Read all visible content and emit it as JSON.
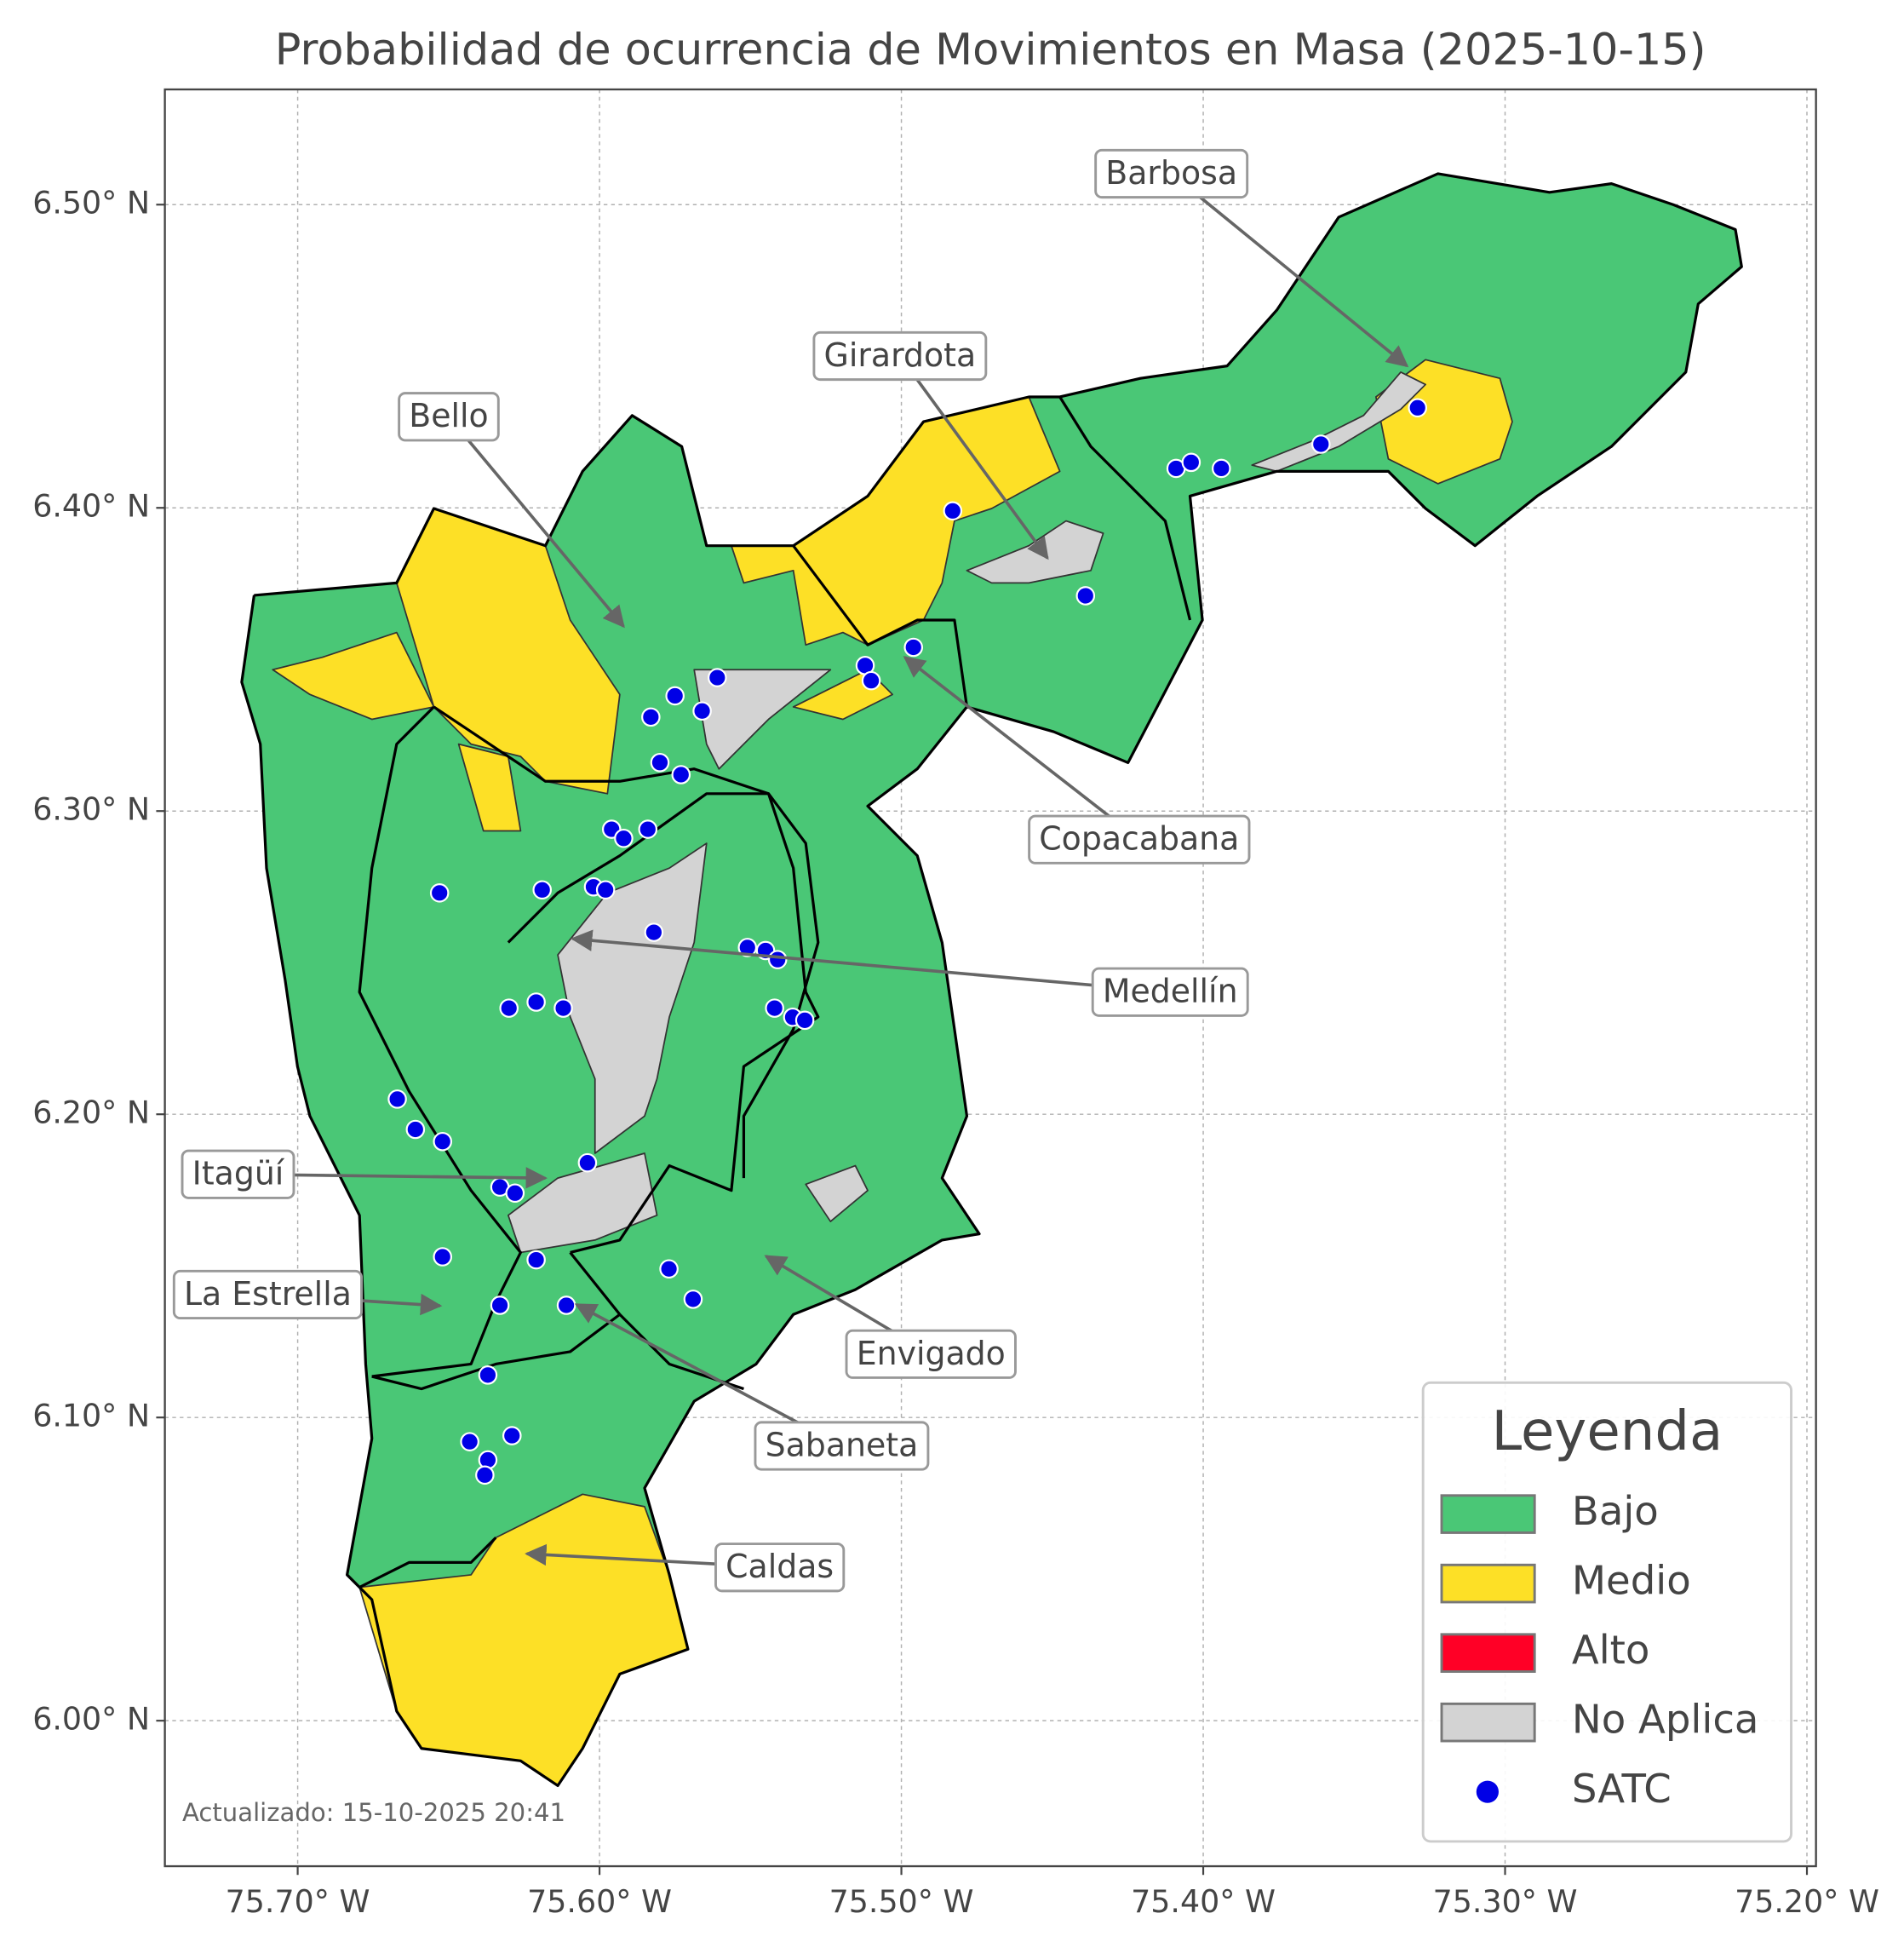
{
  "map": {
    "title": "Probabilidad de ocurrencia de Movimientos en Masa (2025-10-15)",
    "footer": "Actualizado: 15-10-2025 20:41",
    "xlim": [
      -75.744,
      -75.197
    ],
    "ylim": [
      5.952,
      6.538
    ],
    "xticks": [
      {
        "value": -75.7,
        "label": "75.70° W"
      },
      {
        "value": -75.6,
        "label": "75.60° W"
      },
      {
        "value": -75.5,
        "label": "75.50° W"
      },
      {
        "value": -75.4,
        "label": "75.40° W"
      },
      {
        "value": -75.3,
        "label": "75.30° W"
      },
      {
        "value": -75.2,
        "label": "75.20° W"
      }
    ],
    "yticks": [
      {
        "value": 6.0,
        "label": "6.00° N"
      },
      {
        "value": 6.1,
        "label": "6.10° N"
      },
      {
        "value": 6.2,
        "label": "6.20° N"
      },
      {
        "value": 6.3,
        "label": "6.30° N"
      },
      {
        "value": 6.4,
        "label": "6.40° N"
      },
      {
        "value": 6.5,
        "label": "6.50° N"
      }
    ],
    "grid": true,
    "legend": {
      "title": "Leyenda",
      "position": "lower right",
      "entries": [
        {
          "name": "Bajo",
          "color": "#4ac776",
          "marker": "patch"
        },
        {
          "name": "Medio",
          "color": "#fde026",
          "marker": "patch"
        },
        {
          "name": "Alto",
          "color": "#ff0026",
          "marker": "patch"
        },
        {
          "name": "No Aplica",
          "color": "#d3d3d3",
          "marker": "patch"
        },
        {
          "name": "SATC",
          "color": "#0000e6",
          "marker": "circle"
        }
      ]
    },
    "annotations": [
      "Barbosa",
      "Girardota",
      "Bello",
      "Copacabana",
      "Medellín",
      "Itagüí",
      "La Estrella",
      "Envigado",
      "Sabaneta",
      "Caldas"
    ],
    "satc": [
      {
        "lon": -75.483,
        "lat": 6.399
      },
      {
        "lon": -75.409,
        "lat": 6.413
      },
      {
        "lon": -75.404,
        "lat": 6.415
      },
      {
        "lon": -75.394,
        "lat": 6.413
      },
      {
        "lon": -75.361,
        "lat": 6.421
      },
      {
        "lon": -75.329,
        "lat": 6.433
      },
      {
        "lon": -75.439,
        "lat": 6.371
      },
      {
        "lon": -75.496,
        "lat": 6.354
      },
      {
        "lon": -75.512,
        "lat": 6.348
      },
      {
        "lon": -75.51,
        "lat": 6.343
      },
      {
        "lon": -75.561,
        "lat": 6.344
      },
      {
        "lon": -75.575,
        "lat": 6.338
      },
      {
        "lon": -75.566,
        "lat": 6.333
      },
      {
        "lon": -75.583,
        "lat": 6.331
      },
      {
        "lon": -75.58,
        "lat": 6.316
      },
      {
        "lon": -75.573,
        "lat": 6.312
      },
      {
        "lon": -75.596,
        "lat": 6.294
      },
      {
        "lon": -75.592,
        "lat": 6.291
      },
      {
        "lon": -75.584,
        "lat": 6.294
      },
      {
        "lon": -75.653,
        "lat": 6.273
      },
      {
        "lon": -75.619,
        "lat": 6.274
      },
      {
        "lon": -75.602,
        "lat": 6.275
      },
      {
        "lon": -75.598,
        "lat": 6.274
      },
      {
        "lon": -75.582,
        "lat": 6.26
      },
      {
        "lon": -75.551,
        "lat": 6.255
      },
      {
        "lon": -75.545,
        "lat": 6.254
      },
      {
        "lon": -75.541,
        "lat": 6.251
      },
      {
        "lon": -75.542,
        "lat": 6.235
      },
      {
        "lon": -75.536,
        "lat": 6.232
      },
      {
        "lon": -75.532,
        "lat": 6.231
      },
      {
        "lon": -75.621,
        "lat": 6.237
      },
      {
        "lon": -75.63,
        "lat": 6.235
      },
      {
        "lon": -75.612,
        "lat": 6.235
      },
      {
        "lon": -75.667,
        "lat": 6.205
      },
      {
        "lon": -75.661,
        "lat": 6.195
      },
      {
        "lon": -75.652,
        "lat": 6.191
      },
      {
        "lon": -75.604,
        "lat": 6.184
      },
      {
        "lon": -75.633,
        "lat": 6.176
      },
      {
        "lon": -75.628,
        "lat": 6.174
      },
      {
        "lon": -75.652,
        "lat": 6.153
      },
      {
        "lon": -75.621,
        "lat": 6.152
      },
      {
        "lon": -75.577,
        "lat": 6.149
      },
      {
        "lon": -75.569,
        "lat": 6.139
      },
      {
        "lon": -75.633,
        "lat": 6.137
      },
      {
        "lon": -75.611,
        "lat": 6.137
      },
      {
        "lon": -75.637,
        "lat": 6.114
      },
      {
        "lon": -75.643,
        "lat": 6.092
      },
      {
        "lon": -75.629,
        "lat": 6.094
      },
      {
        "lon": -75.637,
        "lat": 6.086
      },
      {
        "lon": -75.638,
        "lat": 6.081
      }
    ]
  }
}
